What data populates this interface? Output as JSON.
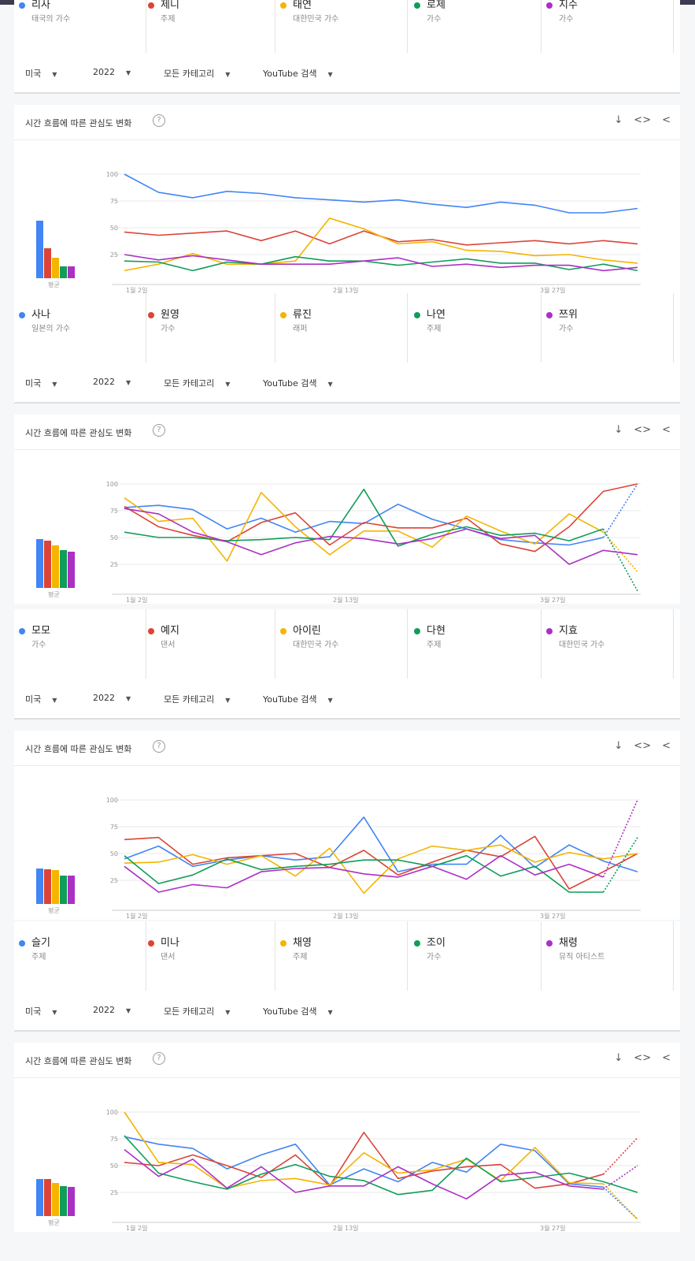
{
  "filters": {
    "region": "미국",
    "year": "2022",
    "category": "모든 카테고리",
    "source": "YouTube 검색"
  },
  "panel_title": "시간 흐름에 따른 관심도 변화",
  "help_symbol": "?",
  "icons": [
    "download-icon",
    "embed-icon",
    "share-icon"
  ],
  "avg_label": "평균",
  "colors": [
    "#4285f4",
    "#db4437",
    "#f4b400",
    "#0f9d58",
    "#ab30c4"
  ],
  "groups": [
    {
      "terms": [
        {
          "name": "리사",
          "sub": "태국의 가수"
        },
        {
          "name": "제니",
          "sub": "주제"
        },
        {
          "name": "태연",
          "sub": "대한민국 가수"
        },
        {
          "name": "로제",
          "sub": "가수"
        },
        {
          "name": "지수",
          "sub": "가수"
        }
      ]
    },
    {
      "terms": [
        {
          "name": "사나",
          "sub": "일본의 가수"
        },
        {
          "name": "원영",
          "sub": "가수"
        },
        {
          "name": "류진",
          "sub": "래퍼"
        },
        {
          "name": "나연",
          "sub": "주제"
        },
        {
          "name": "쯔위",
          "sub": "가수"
        }
      ]
    },
    {
      "terms": [
        {
          "name": "모모",
          "sub": "가수"
        },
        {
          "name": "예지",
          "sub": "댄서"
        },
        {
          "name": "아이린",
          "sub": "대한민국 가수"
        },
        {
          "name": "다현",
          "sub": "주제"
        },
        {
          "name": "지효",
          "sub": "대한민국 가수"
        }
      ]
    },
    {
      "terms": [
        {
          "name": "슬기",
          "sub": "주제"
        },
        {
          "name": "미나",
          "sub": "댄서"
        },
        {
          "name": "채영",
          "sub": "주제"
        },
        {
          "name": "조이",
          "sub": "가수"
        },
        {
          "name": "채령",
          "sub": "뮤직 아티스트"
        }
      ]
    }
  ],
  "chart_data": [
    {
      "type": "line",
      "title": "시간 흐름에 따른 관심도 변화",
      "ylim": [
        0,
        100
      ],
      "yticks": [
        25,
        50,
        75,
        100
      ],
      "xticks": [
        "1월 2일",
        "2월 13일",
        "3월 27일"
      ],
      "averages": [
        76,
        40,
        27,
        16,
        16
      ],
      "series": [
        {
          "name": "리사",
          "values": [
            100,
            83,
            78,
            84,
            82,
            78,
            76,
            74,
            76,
            72,
            69,
            74,
            71,
            64,
            64,
            68
          ],
          "partial": 0
        },
        {
          "name": "제니",
          "values": [
            46,
            43,
            45,
            47,
            38,
            47,
            35,
            47,
            37,
            39,
            34,
            36,
            38,
            35,
            38,
            35
          ],
          "partial": 0
        },
        {
          "name": "태연",
          "values": [
            10,
            16,
            26,
            16,
            16,
            19,
            59,
            49,
            35,
            37,
            29,
            28,
            24,
            25,
            20,
            17
          ],
          "partial": 0
        },
        {
          "name": "로제",
          "values": [
            19,
            18,
            10,
            18,
            16,
            23,
            19,
            19,
            15,
            18,
            21,
            17,
            17,
            11,
            16,
            10
          ],
          "partial": 0
        },
        {
          "name": "지수",
          "values": [
            25,
            20,
            24,
            20,
            16,
            16,
            16,
            19,
            22,
            14,
            16,
            13,
            15,
            15,
            10,
            13
          ],
          "partial": 0
        }
      ]
    },
    {
      "type": "line",
      "title": "시간 흐름에 따른 관심도 변화",
      "ylim": [
        0,
        100
      ],
      "yticks": [
        25,
        50,
        75,
        100
      ],
      "xticks": [
        "1월 2일",
        "2월 13일",
        "3월 27일"
      ],
      "averages": [
        65,
        63,
        56,
        50,
        48
      ],
      "series": [
        {
          "name": "사나",
          "values": [
            78,
            80,
            76,
            58,
            68,
            55,
            65,
            63,
            81,
            67,
            58,
            48,
            45,
            43,
            50,
            100
          ],
          "partial": 1
        },
        {
          "name": "원영",
          "values": [
            79,
            60,
            52,
            46,
            64,
            73,
            43,
            64,
            59,
            59,
            68,
            44,
            37,
            60,
            93,
            100
          ],
          "partial": 0
        },
        {
          "name": "류진",
          "values": [
            87,
            65,
            68,
            28,
            92,
            60,
            34,
            56,
            56,
            41,
            70,
            56,
            44,
            72,
            55,
            18
          ],
          "partial": 1
        },
        {
          "name": "나연",
          "values": [
            55,
            50,
            50,
            47,
            48,
            50,
            48,
            95,
            42,
            53,
            60,
            52,
            54,
            47,
            58,
            0
          ],
          "partial": 1
        },
        {
          "name": "쯔위",
          "values": [
            77,
            72,
            55,
            46,
            34,
            45,
            51,
            49,
            44,
            49,
            58,
            49,
            52,
            25,
            38,
            34
          ],
          "partial": 0
        }
      ]
    },
    {
      "type": "line",
      "title": "시간 흐름에 따른 관심도 변화",
      "ylim": [
        0,
        100
      ],
      "yticks": [
        25,
        50,
        75,
        100
      ],
      "xticks": [
        "1월 2일",
        "2월 13일",
        "3월 27일"
      ],
      "averages": [
        47,
        46,
        45,
        37,
        37
      ],
      "series": [
        {
          "name": "모모",
          "values": [
            45,
            57,
            38,
            44,
            48,
            44,
            47,
            84,
            33,
            40,
            40,
            67,
            37,
            58,
            43,
            33
          ],
          "partial": 0
        },
        {
          "name": "예지",
          "values": [
            63,
            65,
            40,
            46,
            48,
            50,
            37,
            53,
            30,
            42,
            53,
            47,
            66,
            17,
            33,
            50
          ],
          "partial": 0
        },
        {
          "name": "아이린",
          "values": [
            41,
            42,
            49,
            40,
            48,
            29,
            55,
            13,
            45,
            57,
            53,
            58,
            42,
            51,
            45,
            50
          ],
          "partial": 0
        },
        {
          "name": "다현",
          "values": [
            48,
            22,
            30,
            45,
            35,
            38,
            40,
            44,
            44,
            38,
            48,
            29,
            38,
            14,
            14,
            65
          ],
          "partial": 1
        },
        {
          "name": "지효",
          "values": [
            38,
            14,
            21,
            18,
            33,
            36,
            37,
            31,
            28,
            38,
            26,
            48,
            30,
            40,
            28,
            100
          ],
          "partial": 1
        }
      ]
    },
    {
      "type": "line",
      "title": "시간 흐름에 따른 관심도 변화",
      "ylim": [
        0,
        100
      ],
      "yticks": [
        25,
        50,
        75,
        100
      ],
      "xticks": [
        "1월 2일",
        "2월 13일",
        "3월 27일"
      ],
      "averages": [
        49,
        49,
        44,
        40,
        39
      ],
      "series": [
        {
          "name": "슬기",
          "values": [
            77,
            70,
            66,
            47,
            60,
            70,
            32,
            47,
            35,
            53,
            44,
            70,
            64,
            33,
            30,
            0
          ],
          "partial": 1
        },
        {
          "name": "미나",
          "values": [
            53,
            50,
            60,
            50,
            39,
            60,
            31,
            81,
            38,
            45,
            49,
            51,
            29,
            33,
            42,
            76
          ],
          "partial": 1
        },
        {
          "name": "채영",
          "values": [
            100,
            53,
            51,
            29,
            36,
            38,
            32,
            62,
            43,
            46,
            56,
            36,
            67,
            34,
            33,
            0
          ],
          "partial": 1
        },
        {
          "name": "조이",
          "values": [
            78,
            43,
            35,
            28,
            42,
            51,
            40,
            36,
            23,
            27,
            57,
            35,
            39,
            43,
            35,
            25
          ],
          "partial": 0
        },
        {
          "name": "채령",
          "values": [
            65,
            40,
            56,
            29,
            49,
            25,
            31,
            31,
            49,
            33,
            19,
            41,
            44,
            31,
            28,
            50
          ],
          "partial": 1
        }
      ]
    }
  ]
}
